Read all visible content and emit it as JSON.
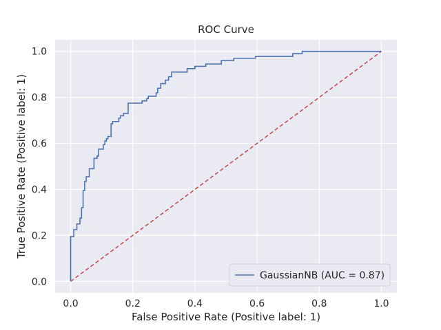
{
  "chart_data": {
    "type": "line",
    "title": "ROC Curve",
    "xlabel": "False Positive Rate (Positive label: 1)",
    "ylabel": "True Positive Rate (Positive label: 1)",
    "xlim": [
      -0.05,
      1.05
    ],
    "ylim": [
      -0.05,
      1.05
    ],
    "xticks": [
      0.0,
      0.2,
      0.4,
      0.6,
      0.8,
      1.0
    ],
    "yticks": [
      0.0,
      0.2,
      0.4,
      0.6,
      0.8,
      1.0
    ],
    "xtick_labels": [
      "0.0",
      "0.2",
      "0.4",
      "0.6",
      "0.8",
      "1.0"
    ],
    "ytick_labels": [
      "0.0",
      "0.2",
      "0.4",
      "0.6",
      "0.8",
      "1.0"
    ],
    "grid": true,
    "legend": {
      "placement": "lower-right",
      "entries": [
        "GaussianNB (AUC = 0.87)"
      ]
    },
    "colors": {
      "background": "#eaeaf2",
      "grid": "#ffffff",
      "roc": "#4c72b0",
      "chance": "#c44e52"
    },
    "series": [
      {
        "name": "GaussianNB (AUC = 0.87)",
        "style": "step",
        "color": "#4c72b0",
        "points": [
          [
            0.0,
            0.0
          ],
          [
            0.0,
            0.195
          ],
          [
            0.01,
            0.195
          ],
          [
            0.01,
            0.225
          ],
          [
            0.02,
            0.225
          ],
          [
            0.02,
            0.25
          ],
          [
            0.03,
            0.25
          ],
          [
            0.03,
            0.275
          ],
          [
            0.035,
            0.275
          ],
          [
            0.035,
            0.32
          ],
          [
            0.04,
            0.32
          ],
          [
            0.04,
            0.395
          ],
          [
            0.045,
            0.395
          ],
          [
            0.045,
            0.435
          ],
          [
            0.05,
            0.435
          ],
          [
            0.05,
            0.455
          ],
          [
            0.06,
            0.455
          ],
          [
            0.06,
            0.49
          ],
          [
            0.075,
            0.49
          ],
          [
            0.075,
            0.535
          ],
          [
            0.085,
            0.535
          ],
          [
            0.085,
            0.545
          ],
          [
            0.09,
            0.545
          ],
          [
            0.09,
            0.575
          ],
          [
            0.105,
            0.575
          ],
          [
            0.105,
            0.595
          ],
          [
            0.11,
            0.595
          ],
          [
            0.11,
            0.61
          ],
          [
            0.115,
            0.61
          ],
          [
            0.115,
            0.62
          ],
          [
            0.12,
            0.62
          ],
          [
            0.12,
            0.63
          ],
          [
            0.13,
            0.63
          ],
          [
            0.13,
            0.685
          ],
          [
            0.135,
            0.685
          ],
          [
            0.135,
            0.695
          ],
          [
            0.155,
            0.695
          ],
          [
            0.155,
            0.71
          ],
          [
            0.16,
            0.71
          ],
          [
            0.16,
            0.72
          ],
          [
            0.17,
            0.72
          ],
          [
            0.17,
            0.73
          ],
          [
            0.185,
            0.73
          ],
          [
            0.185,
            0.775
          ],
          [
            0.23,
            0.775
          ],
          [
            0.23,
            0.785
          ],
          [
            0.245,
            0.785
          ],
          [
            0.245,
            0.795
          ],
          [
            0.25,
            0.795
          ],
          [
            0.25,
            0.805
          ],
          [
            0.275,
            0.805
          ],
          [
            0.275,
            0.82
          ],
          [
            0.28,
            0.82
          ],
          [
            0.28,
            0.84
          ],
          [
            0.29,
            0.84
          ],
          [
            0.29,
            0.86
          ],
          [
            0.305,
            0.86
          ],
          [
            0.305,
            0.875
          ],
          [
            0.315,
            0.875
          ],
          [
            0.315,
            0.89
          ],
          [
            0.325,
            0.89
          ],
          [
            0.325,
            0.91
          ],
          [
            0.375,
            0.91
          ],
          [
            0.375,
            0.925
          ],
          [
            0.4,
            0.925
          ],
          [
            0.4,
            0.935
          ],
          [
            0.435,
            0.935
          ],
          [
            0.435,
            0.945
          ],
          [
            0.485,
            0.945
          ],
          [
            0.485,
            0.96
          ],
          [
            0.525,
            0.96
          ],
          [
            0.525,
            0.97
          ],
          [
            0.595,
            0.97
          ],
          [
            0.595,
            0.978
          ],
          [
            0.715,
            0.978
          ],
          [
            0.715,
            0.99
          ],
          [
            0.745,
            0.99
          ],
          [
            0.745,
            1.0
          ],
          [
            1.0,
            1.0
          ]
        ]
      },
      {
        "name": "",
        "style": "dashed",
        "color": "#c44e52",
        "points": [
          [
            0.0,
            0.0
          ],
          [
            1.0,
            1.0
          ]
        ]
      }
    ]
  }
}
